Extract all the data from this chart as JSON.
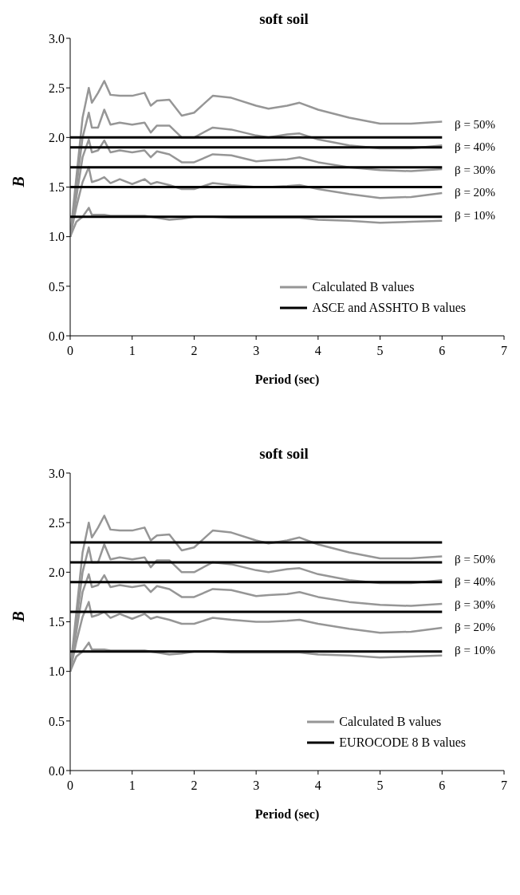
{
  "chart_data": [
    {
      "type": "line",
      "title": "soft soil",
      "xlabel": "Period (sec)",
      "ylabel": "B",
      "xlim": [
        0,
        7
      ],
      "xticks": [
        0,
        1,
        2,
        3,
        4,
        5,
        6,
        7
      ],
      "ylim": [
        0,
        3
      ],
      "yticks": [
        {
          "value": 0,
          "label": "0.0"
        },
        0.5,
        {
          "value": 1,
          "label": "1.0"
        },
        1.5,
        {
          "value": 2,
          "label": "2.0"
        },
        2.5,
        {
          "value": 3,
          "label": "3.0"
        }
      ],
      "grid": false,
      "legend": "bottom right",
      "marker": "none",
      "line_style": "solid",
      "series": [
        {
          "name": "Calculated B values",
          "color": "#969696",
          "x": [
            0,
            0.1,
            0.2,
            0.3,
            0.35,
            0.45,
            0.55,
            0.65,
            0.8,
            1.0,
            1.2,
            1.3,
            1.4,
            1.6,
            1.8,
            2.0,
            2.3,
            2.6,
            3.0,
            3.2,
            3.5,
            3.7,
            4.0,
            4.5,
            5.0,
            5.5,
            6.0
          ],
          "values": [
            1.0,
            1.6,
            2.2,
            2.5,
            2.35,
            2.45,
            2.57,
            2.43,
            2.42,
            2.42,
            2.45,
            2.32,
            2.37,
            2.38,
            2.22,
            2.25,
            2.42,
            2.4,
            2.32,
            2.29,
            2.32,
            2.35,
            2.28,
            2.2,
            2.14,
            2.14,
            2.16
          ]
        },
        {
          "color": "#969696",
          "x": [
            0,
            0.1,
            0.2,
            0.3,
            0.35,
            0.45,
            0.55,
            0.65,
            0.8,
            1.0,
            1.2,
            1.3,
            1.4,
            1.6,
            1.8,
            2.0,
            2.3,
            2.6,
            3.0,
            3.2,
            3.5,
            3.7,
            4.0,
            4.5,
            5.0,
            5.5,
            6.0
          ],
          "values": [
            1.0,
            1.5,
            2.0,
            2.25,
            2.1,
            2.1,
            2.28,
            2.13,
            2.15,
            2.13,
            2.15,
            2.05,
            2.12,
            2.12,
            2.0,
            2.0,
            2.1,
            2.08,
            2.02,
            2.0,
            2.03,
            2.04,
            1.98,
            1.92,
            1.89,
            1.89,
            1.92
          ]
        },
        {
          "color": "#969696",
          "x": [
            0,
            0.1,
            0.2,
            0.3,
            0.35,
            0.45,
            0.55,
            0.65,
            0.8,
            1.0,
            1.2,
            1.3,
            1.4,
            1.6,
            1.8,
            2.0,
            2.3,
            2.6,
            3.0,
            3.2,
            3.5,
            3.7,
            4.0,
            4.5,
            5.0,
            5.5,
            6.0
          ],
          "values": [
            1.0,
            1.4,
            1.8,
            1.98,
            1.85,
            1.87,
            1.97,
            1.85,
            1.87,
            1.85,
            1.87,
            1.8,
            1.86,
            1.83,
            1.75,
            1.75,
            1.83,
            1.82,
            1.76,
            1.77,
            1.78,
            1.8,
            1.75,
            1.7,
            1.67,
            1.66,
            1.68
          ]
        },
        {
          "color": "#969696",
          "x": [
            0,
            0.1,
            0.2,
            0.3,
            0.35,
            0.45,
            0.55,
            0.65,
            0.8,
            1.0,
            1.2,
            1.3,
            1.4,
            1.6,
            1.8,
            2.0,
            2.3,
            2.6,
            3.0,
            3.2,
            3.5,
            3.7,
            4.0,
            4.5,
            5.0,
            5.5,
            6.0
          ],
          "values": [
            1.0,
            1.3,
            1.55,
            1.7,
            1.55,
            1.57,
            1.6,
            1.54,
            1.58,
            1.53,
            1.58,
            1.53,
            1.55,
            1.52,
            1.48,
            1.48,
            1.54,
            1.52,
            1.5,
            1.5,
            1.51,
            1.52,
            1.48,
            1.43,
            1.39,
            1.4,
            1.44
          ]
        },
        {
          "color": "#969696",
          "x": [
            0,
            0.1,
            0.2,
            0.3,
            0.35,
            0.45,
            0.55,
            0.65,
            0.8,
            1.0,
            1.2,
            1.3,
            1.4,
            1.6,
            1.8,
            2.0,
            2.3,
            2.6,
            3.0,
            3.2,
            3.5,
            3.7,
            4.0,
            4.5,
            5.0,
            5.5,
            6.0
          ],
          "values": [
            1.0,
            1.15,
            1.2,
            1.29,
            1.22,
            1.22,
            1.22,
            1.21,
            1.21,
            1.21,
            1.21,
            1.2,
            1.19,
            1.17,
            1.18,
            1.2,
            1.2,
            1.19,
            1.19,
            1.19,
            1.19,
            1.19,
            1.17,
            1.16,
            1.14,
            1.15,
            1.16
          ]
        },
        {
          "name": "ASCE and ASSHTO B values",
          "color": "#000000",
          "x": [
            0,
            6
          ],
          "values": [
            2.0,
            2.0
          ]
        },
        {
          "color": "#000000",
          "x": [
            0,
            6
          ],
          "values": [
            1.9,
            1.9
          ]
        },
        {
          "color": "#000000",
          "x": [
            0,
            6
          ],
          "values": [
            1.7,
            1.7
          ]
        },
        {
          "color": "#000000",
          "x": [
            0,
            6
          ],
          "values": [
            1.5,
            1.5
          ]
        },
        {
          "color": "#000000",
          "x": [
            0,
            6
          ],
          "values": [
            1.2,
            1.2
          ]
        }
      ],
      "annotations": [
        "β = 50%",
        "β = 40%",
        "β = 30%",
        "β = 20%",
        "β = 10%"
      ]
    },
    {
      "type": "line",
      "title": "soft soil",
      "xlabel": "Period (sec)",
      "ylabel": "B",
      "xlim": [
        0,
        7
      ],
      "xticks": [
        0,
        1,
        2,
        3,
        4,
        5,
        6,
        7
      ],
      "ylim": [
        0,
        3
      ],
      "yticks": [
        {
          "value": 0,
          "label": "0.0"
        },
        0.5,
        {
          "value": 1,
          "label": "1.0"
        },
        1.5,
        {
          "value": 2,
          "label": "2.0"
        },
        2.5,
        {
          "value": 3,
          "label": "3.0"
        }
      ],
      "grid": false,
      "legend": "bottom right",
      "marker": "none",
      "line_style": "solid",
      "series": [
        {
          "name": "Calculated B values",
          "color": "#969696",
          "x": [
            0,
            0.1,
            0.2,
            0.3,
            0.35,
            0.45,
            0.55,
            0.65,
            0.8,
            1.0,
            1.2,
            1.3,
            1.4,
            1.6,
            1.8,
            2.0,
            2.3,
            2.6,
            3.0,
            3.2,
            3.5,
            3.7,
            4.0,
            4.5,
            5.0,
            5.5,
            6.0
          ],
          "values": [
            1.0,
            1.6,
            2.2,
            2.5,
            2.35,
            2.45,
            2.57,
            2.43,
            2.42,
            2.42,
            2.45,
            2.32,
            2.37,
            2.38,
            2.22,
            2.25,
            2.42,
            2.4,
            2.32,
            2.29,
            2.32,
            2.35,
            2.28,
            2.2,
            2.14,
            2.14,
            2.16
          ]
        },
        {
          "color": "#969696",
          "x": [
            0,
            0.1,
            0.2,
            0.3,
            0.35,
            0.45,
            0.55,
            0.65,
            0.8,
            1.0,
            1.2,
            1.3,
            1.4,
            1.6,
            1.8,
            2.0,
            2.3,
            2.6,
            3.0,
            3.2,
            3.5,
            3.7,
            4.0,
            4.5,
            5.0,
            5.5,
            6.0
          ],
          "values": [
            1.0,
            1.5,
            2.0,
            2.25,
            2.1,
            2.1,
            2.28,
            2.13,
            2.15,
            2.13,
            2.15,
            2.05,
            2.12,
            2.12,
            2.0,
            2.0,
            2.1,
            2.08,
            2.02,
            2.0,
            2.03,
            2.04,
            1.98,
            1.92,
            1.89,
            1.89,
            1.92
          ]
        },
        {
          "color": "#969696",
          "x": [
            0,
            0.1,
            0.2,
            0.3,
            0.35,
            0.45,
            0.55,
            0.65,
            0.8,
            1.0,
            1.2,
            1.3,
            1.4,
            1.6,
            1.8,
            2.0,
            2.3,
            2.6,
            3.0,
            3.2,
            3.5,
            3.7,
            4.0,
            4.5,
            5.0,
            5.5,
            6.0
          ],
          "values": [
            1.0,
            1.4,
            1.8,
            1.98,
            1.85,
            1.87,
            1.97,
            1.85,
            1.87,
            1.85,
            1.87,
            1.8,
            1.86,
            1.83,
            1.75,
            1.75,
            1.83,
            1.82,
            1.76,
            1.77,
            1.78,
            1.8,
            1.75,
            1.7,
            1.67,
            1.66,
            1.68
          ]
        },
        {
          "color": "#969696",
          "x": [
            0,
            0.1,
            0.2,
            0.3,
            0.35,
            0.45,
            0.55,
            0.65,
            0.8,
            1.0,
            1.2,
            1.3,
            1.4,
            1.6,
            1.8,
            2.0,
            2.3,
            2.6,
            3.0,
            3.2,
            3.5,
            3.7,
            4.0,
            4.5,
            5.0,
            5.5,
            6.0
          ],
          "values": [
            1.0,
            1.3,
            1.55,
            1.7,
            1.55,
            1.57,
            1.6,
            1.54,
            1.58,
            1.53,
            1.58,
            1.53,
            1.55,
            1.52,
            1.48,
            1.48,
            1.54,
            1.52,
            1.5,
            1.5,
            1.51,
            1.52,
            1.48,
            1.43,
            1.39,
            1.4,
            1.44
          ]
        },
        {
          "color": "#969696",
          "x": [
            0,
            0.1,
            0.2,
            0.3,
            0.35,
            0.45,
            0.55,
            0.65,
            0.8,
            1.0,
            1.2,
            1.3,
            1.4,
            1.6,
            1.8,
            2.0,
            2.3,
            2.6,
            3.0,
            3.2,
            3.5,
            3.7,
            4.0,
            4.5,
            5.0,
            5.5,
            6.0
          ],
          "values": [
            1.0,
            1.15,
            1.2,
            1.29,
            1.22,
            1.22,
            1.22,
            1.21,
            1.21,
            1.21,
            1.21,
            1.2,
            1.19,
            1.17,
            1.18,
            1.2,
            1.2,
            1.19,
            1.19,
            1.19,
            1.19,
            1.19,
            1.17,
            1.16,
            1.14,
            1.15,
            1.16
          ]
        },
        {
          "name": "EUROCODE 8 B values",
          "color": "#000000",
          "x": [
            0,
            6
          ],
          "values": [
            2.3,
            2.3
          ]
        },
        {
          "color": "#000000",
          "x": [
            0,
            6
          ],
          "values": [
            2.1,
            2.1
          ]
        },
        {
          "color": "#000000",
          "x": [
            0,
            6
          ],
          "values": [
            1.9,
            1.9
          ]
        },
        {
          "color": "#000000",
          "x": [
            0,
            6
          ],
          "values": [
            1.6,
            1.6
          ]
        },
        {
          "color": "#000000",
          "x": [
            0,
            6
          ],
          "values": [
            1.2,
            1.2
          ]
        }
      ],
      "annotations": [
        "β = 50%",
        "β = 40%",
        "β = 30%",
        "β = 20%",
        "β = 10%"
      ]
    }
  ]
}
